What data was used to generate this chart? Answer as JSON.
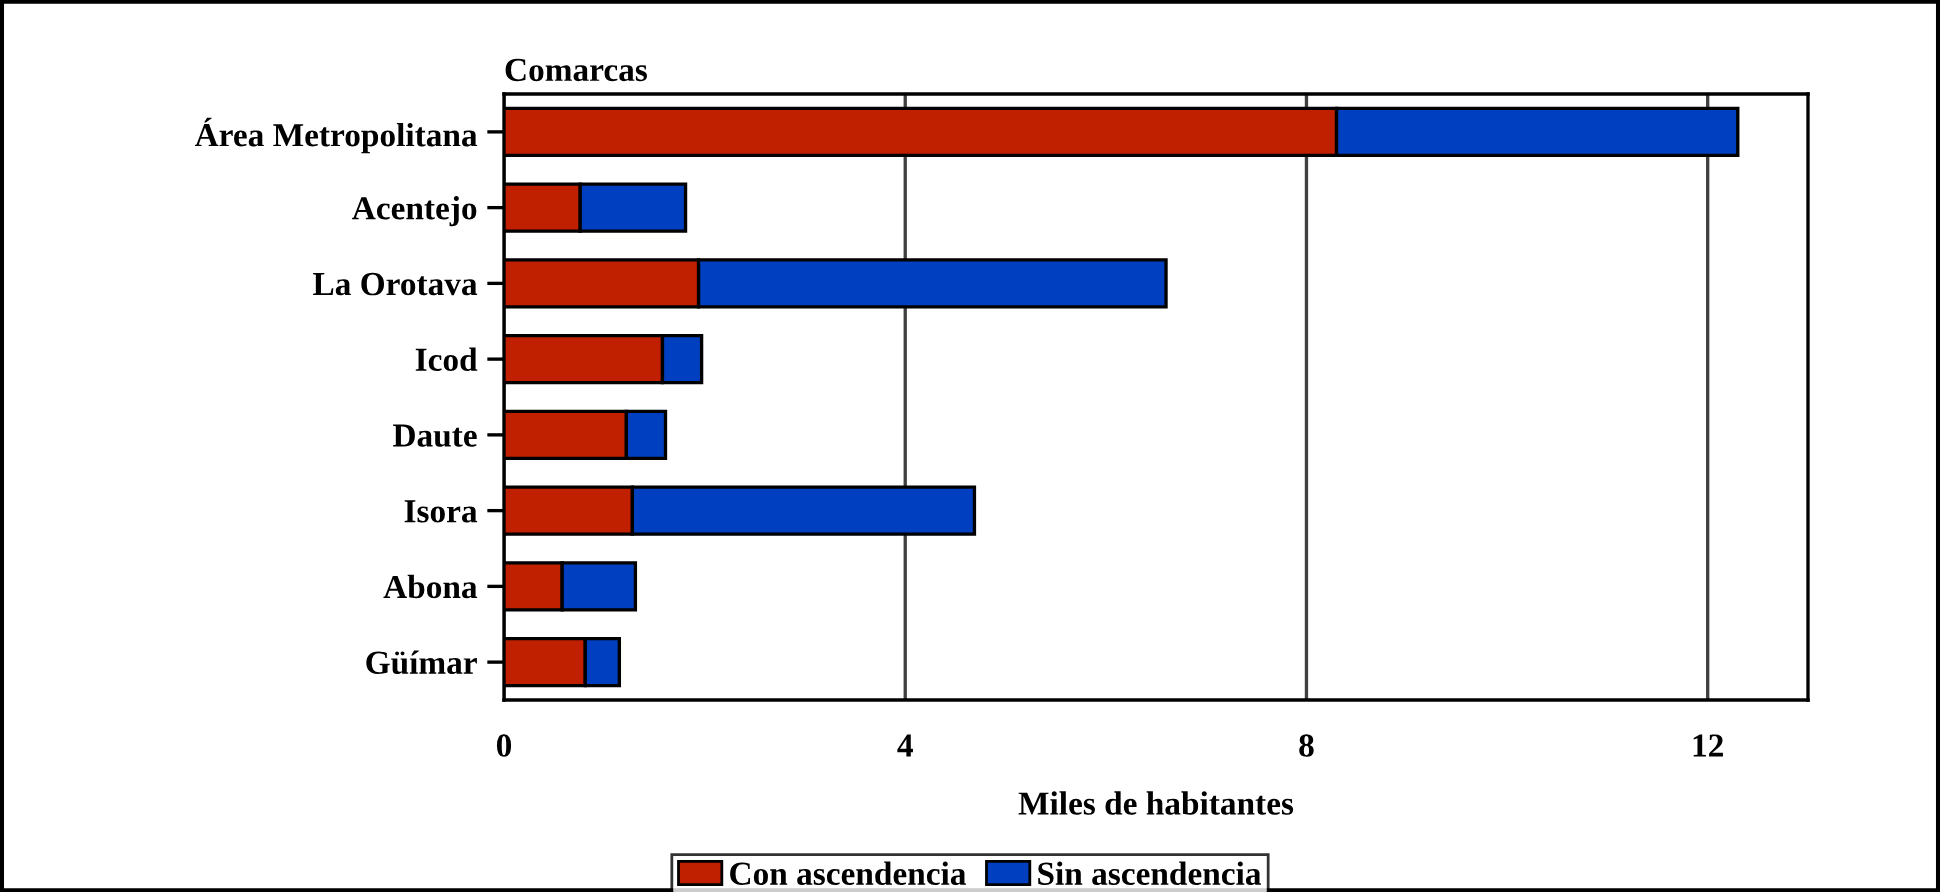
{
  "chart_data": {
    "type": "bar",
    "orientation": "horizontal",
    "stacked": true,
    "ylabel": "Comarcas",
    "xlabel": "Miles de habitantes",
    "categories": [
      "Área Metropolitana",
      "Acentejo",
      "La Orotava",
      "Icod",
      "Daute",
      "Isora",
      "Abona",
      "Güímar"
    ],
    "series": [
      {
        "name": "Con ascendencia",
        "color": "#c02000",
        "values": [
          8.3,
          0.76,
          1.94,
          1.58,
          1.22,
          1.28,
          0.58,
          0.81
        ]
      },
      {
        "name": "Sin ascendencia",
        "color": "#0040c0",
        "values": [
          4.0,
          1.05,
          4.66,
          0.39,
          0.39,
          3.41,
          0.73,
          0.34
        ]
      }
    ],
    "xlim": [
      0,
      13
    ],
    "xticks": [
      0,
      4,
      8,
      12
    ],
    "grid": "x",
    "legend": "bottom"
  }
}
